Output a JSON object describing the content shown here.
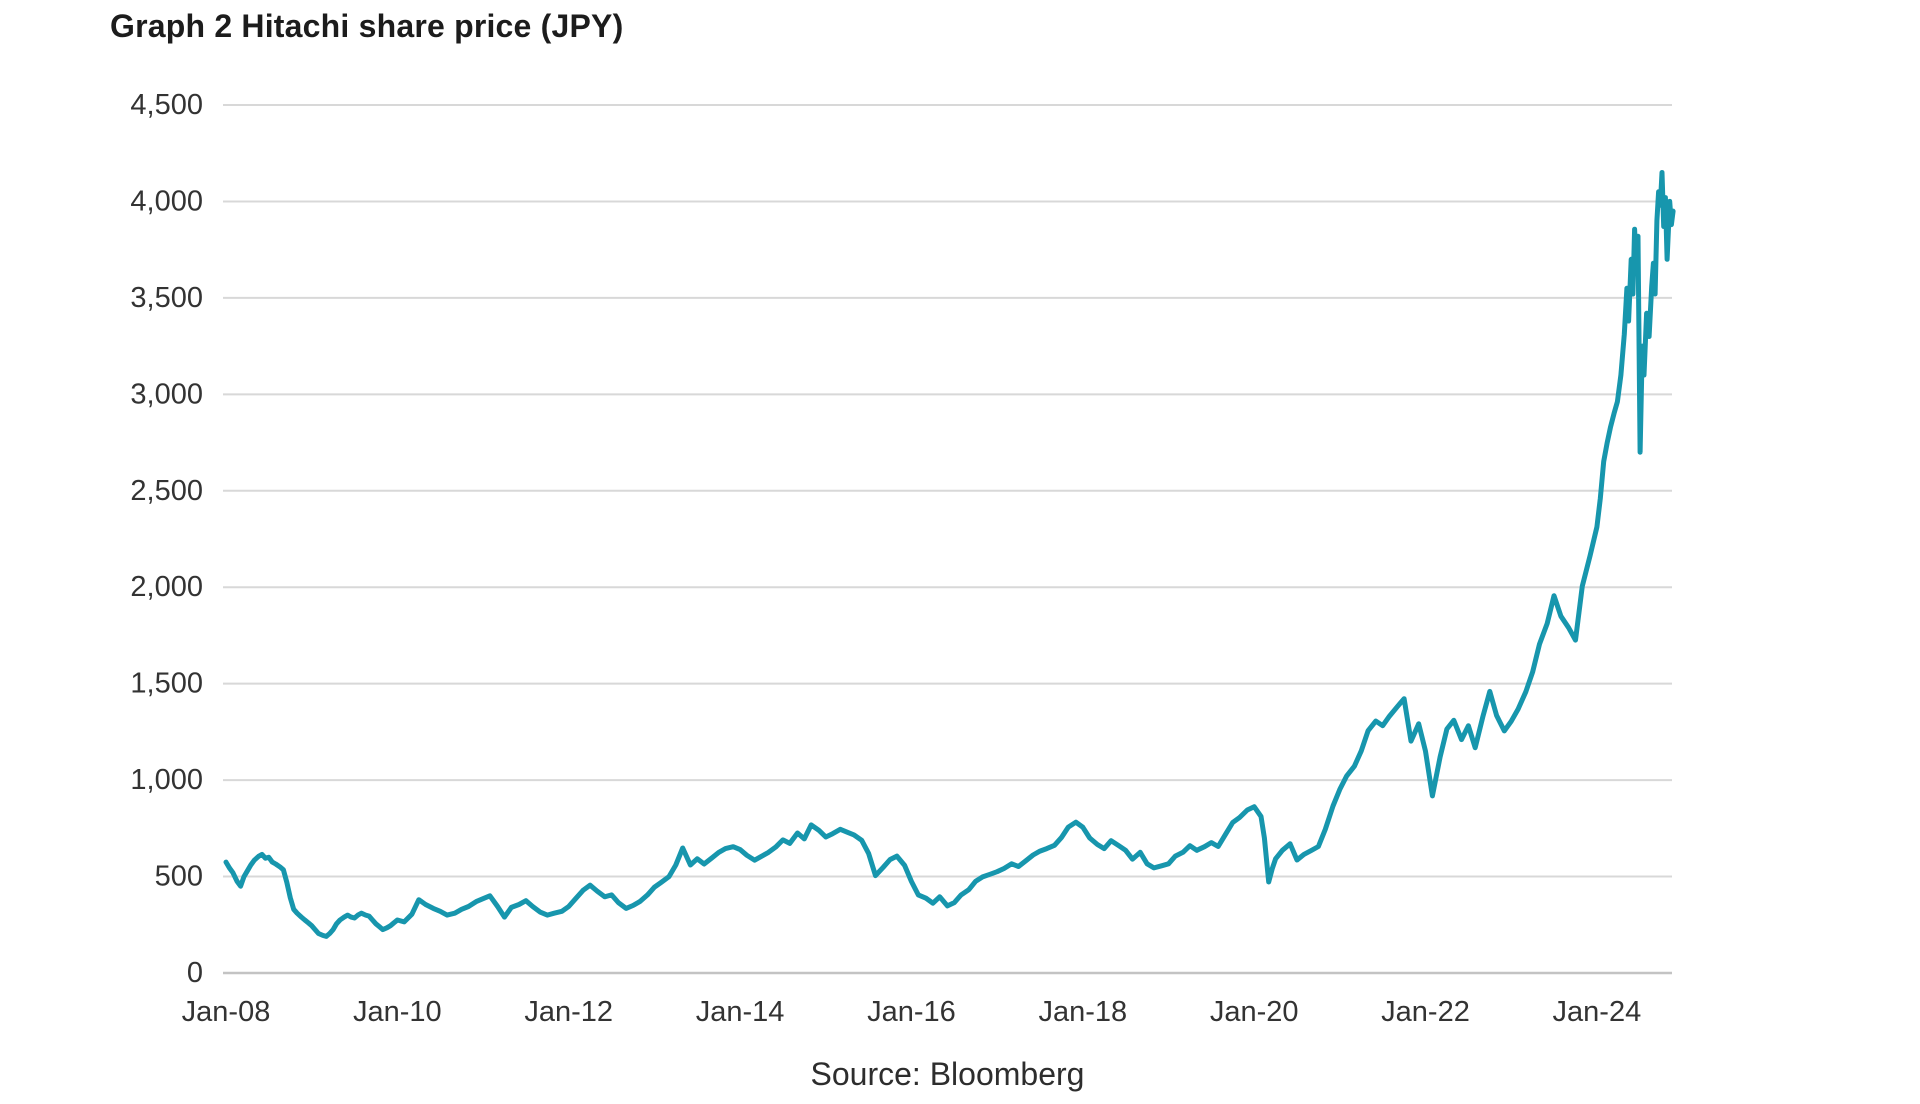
{
  "title": "Graph 2 Hitachi share price (JPY)",
  "source": "Source: Bloomberg",
  "colors": {
    "line": "#1796ad",
    "grid": "#d8d8d8",
    "baseline": "#c3c3c3",
    "text": "#333333"
  },
  "chart_data": {
    "type": "line",
    "title": "Graph 2 Hitachi share price (JPY)",
    "series_name": "Hitachi share price (JPY)",
    "xlabel": "",
    "ylabel": "",
    "grid": "horizontal gridlines only",
    "legend": "none",
    "x_unit": "decimal year",
    "xlim": [
      2008.0,
      2024.97
    ],
    "ylim": [
      0,
      4500
    ],
    "y_ticks": [
      0,
      500,
      1000,
      1500,
      2000,
      2500,
      3000,
      3500,
      4000,
      4500
    ],
    "y_tick_labels": [
      "0",
      "500",
      "1,000",
      "1,500",
      "2,000",
      "2,500",
      "3,000",
      "3,500",
      "4,000",
      "4,500"
    ],
    "x_tick_years": [
      2008,
      2010,
      2012,
      2014,
      2016,
      2018,
      2020,
      2022,
      2024
    ],
    "x_tick_labels": [
      "Jan-08",
      "Jan-10",
      "Jan-12",
      "Jan-14",
      "Jan-16",
      "Jan-18",
      "Jan-20",
      "Jan-22",
      "Jan-24"
    ],
    "points": [
      [
        2008.0,
        575
      ],
      [
        2008.04,
        545
      ],
      [
        2008.08,
        520
      ],
      [
        2008.13,
        475
      ],
      [
        2008.17,
        450
      ],
      [
        2008.21,
        500
      ],
      [
        2008.25,
        530
      ],
      [
        2008.29,
        560
      ],
      [
        2008.33,
        585
      ],
      [
        2008.38,
        605
      ],
      [
        2008.42,
        615
      ],
      [
        2008.46,
        595
      ],
      [
        2008.5,
        600
      ],
      [
        2008.54,
        575
      ],
      [
        2008.58,
        565
      ],
      [
        2008.63,
        550
      ],
      [
        2008.67,
        535
      ],
      [
        2008.71,
        470
      ],
      [
        2008.75,
        390
      ],
      [
        2008.79,
        330
      ],
      [
        2008.83,
        310
      ],
      [
        2008.88,
        290
      ],
      [
        2008.92,
        275
      ],
      [
        2008.96,
        260
      ],
      [
        2009.0,
        245
      ],
      [
        2009.04,
        225
      ],
      [
        2009.08,
        205
      ],
      [
        2009.13,
        195
      ],
      [
        2009.17,
        190
      ],
      [
        2009.21,
        205
      ],
      [
        2009.25,
        225
      ],
      [
        2009.29,
        255
      ],
      [
        2009.33,
        275
      ],
      [
        2009.38,
        290
      ],
      [
        2009.42,
        300
      ],
      [
        2009.46,
        290
      ],
      [
        2009.5,
        285
      ],
      [
        2009.54,
        300
      ],
      [
        2009.58,
        310
      ],
      [
        2009.63,
        300
      ],
      [
        2009.67,
        295
      ],
      [
        2009.71,
        275
      ],
      [
        2009.75,
        255
      ],
      [
        2009.79,
        240
      ],
      [
        2009.83,
        225
      ],
      [
        2009.88,
        235
      ],
      [
        2009.92,
        245
      ],
      [
        2009.96,
        260
      ],
      [
        2010.0,
        275
      ],
      [
        2010.08,
        265
      ],
      [
        2010.17,
        305
      ],
      [
        2010.25,
        380
      ],
      [
        2010.33,
        355
      ],
      [
        2010.42,
        335
      ],
      [
        2010.5,
        320
      ],
      [
        2010.58,
        300
      ],
      [
        2010.67,
        310
      ],
      [
        2010.75,
        330
      ],
      [
        2010.83,
        345
      ],
      [
        2010.92,
        370
      ],
      [
        2011.0,
        385
      ],
      [
        2011.08,
        400
      ],
      [
        2011.17,
        345
      ],
      [
        2011.25,
        290
      ],
      [
        2011.33,
        340
      ],
      [
        2011.42,
        355
      ],
      [
        2011.5,
        375
      ],
      [
        2011.58,
        345
      ],
      [
        2011.67,
        315
      ],
      [
        2011.75,
        300
      ],
      [
        2011.83,
        310
      ],
      [
        2011.92,
        320
      ],
      [
        2012.0,
        345
      ],
      [
        2012.08,
        385
      ],
      [
        2012.17,
        430
      ],
      [
        2012.25,
        455
      ],
      [
        2012.33,
        425
      ],
      [
        2012.42,
        395
      ],
      [
        2012.5,
        405
      ],
      [
        2012.58,
        365
      ],
      [
        2012.67,
        335
      ],
      [
        2012.75,
        350
      ],
      [
        2012.83,
        370
      ],
      [
        2012.92,
        405
      ],
      [
        2013.0,
        445
      ],
      [
        2013.08,
        470
      ],
      [
        2013.17,
        500
      ],
      [
        2013.25,
        560
      ],
      [
        2013.33,
        648
      ],
      [
        2013.42,
        560
      ],
      [
        2013.5,
        592
      ],
      [
        2013.58,
        565
      ],
      [
        2013.67,
        596
      ],
      [
        2013.75,
        625
      ],
      [
        2013.83,
        645
      ],
      [
        2013.92,
        655
      ],
      [
        2014.0,
        640
      ],
      [
        2014.08,
        610
      ],
      [
        2014.17,
        585
      ],
      [
        2014.25,
        605
      ],
      [
        2014.33,
        625
      ],
      [
        2014.42,
        655
      ],
      [
        2014.5,
        690
      ],
      [
        2014.58,
        672
      ],
      [
        2014.67,
        726
      ],
      [
        2014.75,
        695
      ],
      [
        2014.83,
        768
      ],
      [
        2014.92,
        740
      ],
      [
        2015.0,
        705
      ],
      [
        2015.08,
        722
      ],
      [
        2015.17,
        745
      ],
      [
        2015.25,
        730
      ],
      [
        2015.33,
        716
      ],
      [
        2015.42,
        688
      ],
      [
        2015.5,
        620
      ],
      [
        2015.58,
        505
      ],
      [
        2015.67,
        548
      ],
      [
        2015.75,
        588
      ],
      [
        2015.83,
        606
      ],
      [
        2015.92,
        558
      ],
      [
        2016.0,
        475
      ],
      [
        2016.08,
        405
      ],
      [
        2016.17,
        388
      ],
      [
        2016.25,
        362
      ],
      [
        2016.33,
        395
      ],
      [
        2016.42,
        348
      ],
      [
        2016.5,
        365
      ],
      [
        2016.58,
        405
      ],
      [
        2016.67,
        432
      ],
      [
        2016.75,
        476
      ],
      [
        2016.83,
        498
      ],
      [
        2016.92,
        512
      ],
      [
        2017.0,
        525
      ],
      [
        2017.08,
        542
      ],
      [
        2017.17,
        566
      ],
      [
        2017.25,
        552
      ],
      [
        2017.33,
        580
      ],
      [
        2017.42,
        612
      ],
      [
        2017.5,
        632
      ],
      [
        2017.58,
        645
      ],
      [
        2017.67,
        662
      ],
      [
        2017.75,
        702
      ],
      [
        2017.83,
        756
      ],
      [
        2017.92,
        782
      ],
      [
        2018.0,
        756
      ],
      [
        2018.08,
        700
      ],
      [
        2018.17,
        666
      ],
      [
        2018.25,
        645
      ],
      [
        2018.33,
        686
      ],
      [
        2018.42,
        660
      ],
      [
        2018.5,
        636
      ],
      [
        2018.58,
        590
      ],
      [
        2018.67,
        626
      ],
      [
        2018.75,
        566
      ],
      [
        2018.83,
        545
      ],
      [
        2018.92,
        556
      ],
      [
        2019.0,
        566
      ],
      [
        2019.08,
        606
      ],
      [
        2019.17,
        626
      ],
      [
        2019.25,
        660
      ],
      [
        2019.33,
        636
      ],
      [
        2019.42,
        655
      ],
      [
        2019.5,
        676
      ],
      [
        2019.58,
        656
      ],
      [
        2019.67,
        722
      ],
      [
        2019.75,
        780
      ],
      [
        2019.83,
        806
      ],
      [
        2019.92,
        845
      ],
      [
        2020.0,
        862
      ],
      [
        2020.08,
        812
      ],
      [
        2020.12,
        700
      ],
      [
        2020.17,
        472
      ],
      [
        2020.21,
        540
      ],
      [
        2020.25,
        592
      ],
      [
        2020.33,
        636
      ],
      [
        2020.42,
        670
      ],
      [
        2020.5,
        586
      ],
      [
        2020.58,
        615
      ],
      [
        2020.67,
        636
      ],
      [
        2020.75,
        656
      ],
      [
        2020.83,
        745
      ],
      [
        2020.92,
        866
      ],
      [
        2021.0,
        952
      ],
      [
        2021.08,
        1022
      ],
      [
        2021.17,
        1072
      ],
      [
        2021.25,
        1152
      ],
      [
        2021.33,
        1256
      ],
      [
        2021.42,
        1306
      ],
      [
        2021.5,
        1282
      ],
      [
        2021.58,
        1332
      ],
      [
        2021.67,
        1380
      ],
      [
        2021.75,
        1422
      ],
      [
        2021.83,
        1202
      ],
      [
        2021.92,
        1292
      ],
      [
        2022.0,
        1150
      ],
      [
        2022.08,
        918
      ],
      [
        2022.17,
        1120
      ],
      [
        2022.25,
        1265
      ],
      [
        2022.33,
        1310
      ],
      [
        2022.42,
        1210
      ],
      [
        2022.5,
        1282
      ],
      [
        2022.58,
        1168
      ],
      [
        2022.67,
        1330
      ],
      [
        2022.75,
        1460
      ],
      [
        2022.83,
        1335
      ],
      [
        2022.92,
        1255
      ],
      [
        2023.0,
        1305
      ],
      [
        2023.08,
        1368
      ],
      [
        2023.17,
        1458
      ],
      [
        2023.25,
        1560
      ],
      [
        2023.33,
        1705
      ],
      [
        2023.42,
        1812
      ],
      [
        2023.5,
        1956
      ],
      [
        2023.58,
        1850
      ],
      [
        2023.67,
        1790
      ],
      [
        2023.75,
        1726
      ],
      [
        2023.83,
        2006
      ],
      [
        2023.92,
        2162
      ],
      [
        2024.0,
        2312
      ],
      [
        2024.04,
        2460
      ],
      [
        2024.08,
        2652
      ],
      [
        2024.12,
        2750
      ],
      [
        2024.16,
        2832
      ],
      [
        2024.2,
        2900
      ],
      [
        2024.24,
        2962
      ],
      [
        2024.28,
        3100
      ],
      [
        2024.32,
        3312
      ],
      [
        2024.35,
        3550
      ],
      [
        2024.37,
        3380
      ],
      [
        2024.4,
        3700
      ],
      [
        2024.42,
        3520
      ],
      [
        2024.44,
        3856
      ],
      [
        2024.46,
        3650
      ],
      [
        2024.48,
        3820
      ],
      [
        2024.505,
        2700
      ],
      [
        2024.53,
        3250
      ],
      [
        2024.55,
        3100
      ],
      [
        2024.58,
        3420
      ],
      [
        2024.61,
        3300
      ],
      [
        2024.64,
        3560
      ],
      [
        2024.66,
        3680
      ],
      [
        2024.68,
        3520
      ],
      [
        2024.7,
        3900
      ],
      [
        2024.72,
        4050
      ],
      [
        2024.74,
        3980
      ],
      [
        2024.76,
        4150
      ],
      [
        2024.78,
        3870
      ],
      [
        2024.8,
        4020
      ],
      [
        2024.82,
        3700
      ],
      [
        2024.85,
        4000
      ],
      [
        2024.87,
        3880
      ],
      [
        2024.89,
        3950
      ]
    ]
  }
}
